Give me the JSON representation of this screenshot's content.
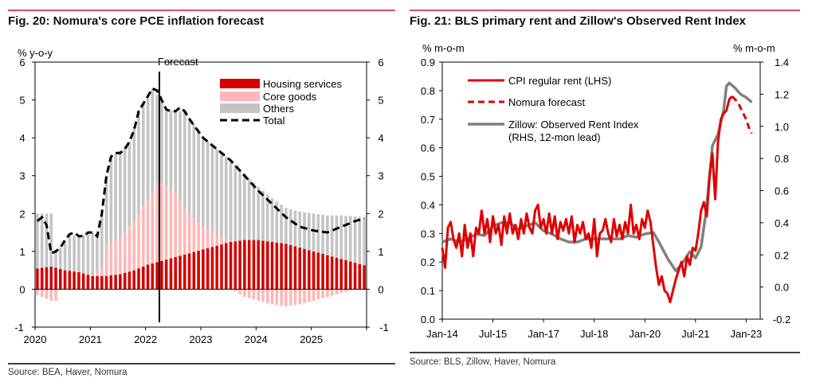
{
  "colors": {
    "rule": "#c8102e",
    "housing": "#d40000",
    "core_goods": "#ffb7b7",
    "others": "#c4c4c4",
    "total": "#000000",
    "cpi": "#e00000",
    "zillow": "#808080"
  },
  "chart_data": [
    {
      "type": "bar",
      "title": "Fig. 20: Nomura's core PCE inflation forecast",
      "source": "Source: BEA, Haver, Nomura",
      "ylabel": "% y-o-y",
      "ylim": [
        -1,
        6
      ],
      "yticks": [
        "6",
        "5",
        "4",
        "3",
        "2",
        "1",
        "0",
        "-1"
      ],
      "xtick_labels": [
        "2020",
        "2021",
        "2022",
        "2023",
        "2024",
        "2025"
      ],
      "forecast_label": "Forecast",
      "forecast_start": "2022-04",
      "x_start": "2020-01",
      "x_end": "2025-12",
      "legend": [
        "Housing services",
        "Core goods",
        "Others",
        "Total"
      ],
      "series_anchors": {
        "total": [
          [
            0,
            1.8
          ],
          [
            1,
            1.9
          ],
          [
            2,
            1.7
          ],
          [
            3,
            0.95
          ],
          [
            4,
            1.0
          ],
          [
            5,
            1.1
          ],
          [
            6,
            1.3
          ],
          [
            7,
            1.45
          ],
          [
            8,
            1.5
          ],
          [
            9,
            1.4
          ],
          [
            10,
            1.4
          ],
          [
            11,
            1.5
          ],
          [
            12,
            1.5
          ],
          [
            13,
            1.4
          ],
          [
            14,
            2.0
          ],
          [
            15,
            3.0
          ],
          [
            16,
            3.5
          ],
          [
            17,
            3.6
          ],
          [
            18,
            3.6
          ],
          [
            19,
            3.7
          ],
          [
            20,
            3.9
          ],
          [
            21,
            4.2
          ],
          [
            22,
            4.7
          ],
          [
            23,
            4.9
          ],
          [
            24,
            5.1
          ],
          [
            25,
            5.3
          ],
          [
            26,
            5.25
          ],
          [
            27,
            5.0
          ],
          [
            28,
            4.75
          ],
          [
            29,
            4.7
          ],
          [
            30,
            4.7
          ],
          [
            31,
            4.8
          ],
          [
            32,
            4.7
          ],
          [
            33,
            4.5
          ],
          [
            36,
            4.0
          ],
          [
            39,
            3.7
          ],
          [
            42,
            3.4
          ],
          [
            45,
            3.0
          ],
          [
            48,
            2.6
          ],
          [
            51,
            2.25
          ],
          [
            54,
            1.9
          ],
          [
            57,
            1.65
          ],
          [
            60,
            1.55
          ],
          [
            63,
            1.5
          ],
          [
            66,
            1.65
          ],
          [
            69,
            1.8
          ],
          [
            72,
            1.9
          ],
          [
            75,
            2.0
          ]
        ],
        "housing": [
          [
            0,
            0.55
          ],
          [
            3,
            0.6
          ],
          [
            6,
            0.5
          ],
          [
            9,
            0.45
          ],
          [
            12,
            0.35
          ],
          [
            15,
            0.35
          ],
          [
            18,
            0.4
          ],
          [
            21,
            0.5
          ],
          [
            24,
            0.65
          ],
          [
            27,
            0.75
          ],
          [
            30,
            0.85
          ],
          [
            33,
            0.95
          ],
          [
            36,
            1.05
          ],
          [
            39,
            1.15
          ],
          [
            42,
            1.25
          ],
          [
            45,
            1.3
          ],
          [
            48,
            1.3
          ],
          [
            51,
            1.25
          ],
          [
            54,
            1.2
          ],
          [
            57,
            1.1
          ],
          [
            60,
            1.0
          ],
          [
            63,
            0.9
          ],
          [
            66,
            0.8
          ],
          [
            69,
            0.7
          ],
          [
            72,
            0.6
          ],
          [
            75,
            0.45
          ]
        ],
        "core_goods": [
          [
            0,
            -0.15
          ],
          [
            3,
            -0.3
          ],
          [
            4,
            -0.3
          ],
          [
            5,
            0.0
          ],
          [
            9,
            0.0
          ],
          [
            12,
            0.0
          ],
          [
            14,
            0.2
          ],
          [
            15,
            0.8
          ],
          [
            18,
            1.0
          ],
          [
            21,
            1.3
          ],
          [
            24,
            1.7
          ],
          [
            26,
            2.1
          ],
          [
            27,
            2.1
          ],
          [
            29,
            1.8
          ],
          [
            30,
            1.7
          ],
          [
            32,
            1.2
          ],
          [
            36,
            0.6
          ],
          [
            39,
            0.3
          ],
          [
            42,
            0.0
          ],
          [
            45,
            -0.2
          ],
          [
            48,
            -0.3
          ],
          [
            51,
            -0.4
          ],
          [
            54,
            -0.45
          ],
          [
            57,
            -0.4
          ],
          [
            60,
            -0.3
          ],
          [
            63,
            -0.2
          ],
          [
            66,
            -0.1
          ],
          [
            69,
            0.0
          ],
          [
            72,
            0.0
          ],
          [
            75,
            0.0
          ]
        ],
        "gross_top": [
          [
            0,
            2.0
          ],
          [
            3,
            2.0
          ],
          [
            4,
            1.05
          ],
          [
            5,
            1.1
          ],
          [
            7,
            1.45
          ],
          [
            9,
            1.4
          ],
          [
            12,
            1.5
          ],
          [
            13,
            1.4
          ],
          [
            14,
            2.0
          ],
          [
            15,
            3.0
          ],
          [
            16,
            3.5
          ],
          [
            18,
            3.65
          ],
          [
            20,
            3.9
          ],
          [
            22,
            4.7
          ],
          [
            24,
            5.1
          ],
          [
            25,
            5.3
          ],
          [
            27,
            5.0
          ],
          [
            28,
            4.75
          ],
          [
            30,
            4.7
          ],
          [
            32,
            4.7
          ],
          [
            36,
            4.0
          ],
          [
            39,
            3.7
          ],
          [
            42,
            3.4
          ],
          [
            45,
            3.05
          ],
          [
            48,
            2.7
          ],
          [
            51,
            2.4
          ],
          [
            54,
            2.15
          ],
          [
            57,
            2.05
          ],
          [
            60,
            2.0
          ],
          [
            63,
            1.95
          ],
          [
            66,
            1.95
          ],
          [
            69,
            1.92
          ],
          [
            72,
            1.9
          ],
          [
            75,
            1.9
          ]
        ]
      }
    },
    {
      "type": "line",
      "title": "Fig. 21: BLS primary rent and Zillow's Observed Rent Index",
      "source": "Source: BLS, Zillow, Haver, Nomura",
      "ylabel_left": "% m-o-m",
      "ylabel_right": "% m-o-m",
      "ylim_left": [
        0.0,
        0.9
      ],
      "ylim_right": [
        -0.2,
        1.4
      ],
      "yticks_left": [
        "0.9",
        "0.8",
        "0.7",
        "0.6",
        "0.5",
        "0.4",
        "0.3",
        "0.2",
        "0.1",
        "0.0"
      ],
      "yticks_right": [
        "1.4",
        "1.2",
        "1.0",
        "0.8",
        "0.6",
        "0.4",
        "0.2",
        "0.0",
        "-0.2"
      ],
      "xtick_labels": [
        "Jan-14",
        "Jul-15",
        "Jan-17",
        "Jul-18",
        "Jan-20",
        "Jul-21",
        "Jan-23"
      ],
      "x_start": "2014-01",
      "x_end": "2023-06",
      "legend": [
        "CPI regular rent (LHS)",
        "Nomura forecast",
        "Zillow: Observed Rent Index",
        "(RHS, 12-mon lead)"
      ],
      "series_anchors": {
        "cpi": [
          [
            0,
            0.25
          ],
          [
            1,
            0.18
          ],
          [
            2,
            0.32
          ],
          [
            3,
            0.34
          ],
          [
            4,
            0.28
          ],
          [
            5,
            0.25
          ],
          [
            6,
            0.3
          ],
          [
            7,
            0.22
          ],
          [
            8,
            0.33
          ],
          [
            9,
            0.25
          ],
          [
            10,
            0.3
          ],
          [
            11,
            0.22
          ],
          [
            12,
            0.32
          ],
          [
            13,
            0.3
          ],
          [
            14,
            0.38
          ],
          [
            15,
            0.3
          ],
          [
            16,
            0.35
          ],
          [
            17,
            0.27
          ],
          [
            18,
            0.36
          ],
          [
            19,
            0.3
          ],
          [
            20,
            0.33
          ],
          [
            21,
            0.26
          ],
          [
            22,
            0.36
          ],
          [
            23,
            0.3
          ],
          [
            24,
            0.37
          ],
          [
            25,
            0.3
          ],
          [
            26,
            0.33
          ],
          [
            27,
            0.28
          ],
          [
            28,
            0.35
          ],
          [
            29,
            0.3
          ],
          [
            30,
            0.37
          ],
          [
            31,
            0.32
          ],
          [
            32,
            0.3
          ],
          [
            33,
            0.38
          ],
          [
            34,
            0.4
          ],
          [
            35,
            0.32
          ],
          [
            36,
            0.35
          ],
          [
            37,
            0.3
          ],
          [
            38,
            0.37
          ],
          [
            39,
            0.3
          ],
          [
            40,
            0.36
          ],
          [
            41,
            0.28
          ],
          [
            42,
            0.34
          ],
          [
            43,
            0.31
          ],
          [
            44,
            0.35
          ],
          [
            45,
            0.3
          ],
          [
            46,
            0.36
          ],
          [
            47,
            0.27
          ],
          [
            48,
            0.33
          ],
          [
            49,
            0.3
          ],
          [
            50,
            0.34
          ],
          [
            51,
            0.28
          ],
          [
            52,
            0.3
          ],
          [
            53,
            0.25
          ],
          [
            54,
            0.35
          ],
          [
            55,
            0.22
          ],
          [
            56,
            0.3
          ],
          [
            57,
            0.31
          ],
          [
            58,
            0.35
          ],
          [
            59,
            0.3
          ],
          [
            60,
            0.27
          ],
          [
            61,
            0.35
          ],
          [
            62,
            0.29
          ],
          [
            63,
            0.33
          ],
          [
            64,
            0.28
          ],
          [
            65,
            0.34
          ],
          [
            66,
            0.3
          ],
          [
            67,
            0.4
          ],
          [
            68,
            0.3
          ],
          [
            69,
            0.33
          ],
          [
            70,
            0.28
          ],
          [
            71,
            0.35
          ],
          [
            72,
            0.32
          ],
          [
            73,
            0.38
          ],
          [
            74,
            0.34
          ],
          [
            75,
            0.26
          ],
          [
            76,
            0.18
          ],
          [
            77,
            0.12
          ],
          [
            78,
            0.15
          ],
          [
            79,
            0.1
          ],
          [
            80,
            0.09
          ],
          [
            81,
            0.06
          ],
          [
            82,
            0.1
          ],
          [
            83,
            0.14
          ],
          [
            84,
            0.17
          ],
          [
            85,
            0.2
          ],
          [
            86,
            0.15
          ],
          [
            87,
            0.22
          ],
          [
            88,
            0.19
          ],
          [
            89,
            0.25
          ],
          [
            90,
            0.24
          ],
          [
            91,
            0.3
          ],
          [
            92,
            0.38
          ],
          [
            93,
            0.41
          ],
          [
            94,
            0.36
          ],
          [
            95,
            0.5
          ],
          [
            96,
            0.58
          ],
          [
            97,
            0.42
          ],
          [
            98,
            0.62
          ],
          [
            99,
            0.7
          ],
          [
            100,
            0.72
          ],
          [
            101,
            0.73
          ],
          [
            102,
            0.77
          ],
          [
            103,
            0.78
          ]
        ],
        "forecast": [
          [
            103,
            0.78
          ],
          [
            104,
            0.77
          ],
          [
            105,
            0.76
          ],
          [
            106,
            0.74
          ],
          [
            107,
            0.72
          ],
          [
            108,
            0.7
          ],
          [
            109,
            0.67
          ],
          [
            110,
            0.65
          ]
        ],
        "zillow": [
          [
            0,
            0.28
          ],
          [
            3,
            0.3
          ],
          [
            6,
            0.28
          ],
          [
            9,
            0.3
          ],
          [
            12,
            0.33
          ],
          [
            15,
            0.32
          ],
          [
            18,
            0.38
          ],
          [
            21,
            0.4
          ],
          [
            24,
            0.4
          ],
          [
            27,
            0.36
          ],
          [
            30,
            0.38
          ],
          [
            33,
            0.4
          ],
          [
            36,
            0.35
          ],
          [
            39,
            0.33
          ],
          [
            42,
            0.3
          ],
          [
            45,
            0.28
          ],
          [
            48,
            0.28
          ],
          [
            51,
            0.3
          ],
          [
            54,
            0.3
          ],
          [
            57,
            0.3
          ],
          [
            60,
            0.3
          ],
          [
            63,
            0.3
          ],
          [
            66,
            0.32
          ],
          [
            69,
            0.31
          ],
          [
            72,
            0.33
          ],
          [
            75,
            0.34
          ],
          [
            77,
            0.28
          ],
          [
            80,
            0.18
          ],
          [
            83,
            0.1
          ],
          [
            85,
            0.14
          ],
          [
            88,
            0.22
          ],
          [
            90,
            0.18
          ],
          [
            92,
            0.25
          ],
          [
            94,
            0.5
          ],
          [
            96,
            0.88
          ],
          [
            98,
            0.95
          ],
          [
            100,
            1.1
          ],
          [
            101,
            1.25
          ],
          [
            102,
            1.27
          ],
          [
            104,
            1.24
          ],
          [
            106,
            1.2
          ],
          [
            108,
            1.18
          ],
          [
            110,
            1.15
          ]
        ]
      }
    }
  ]
}
